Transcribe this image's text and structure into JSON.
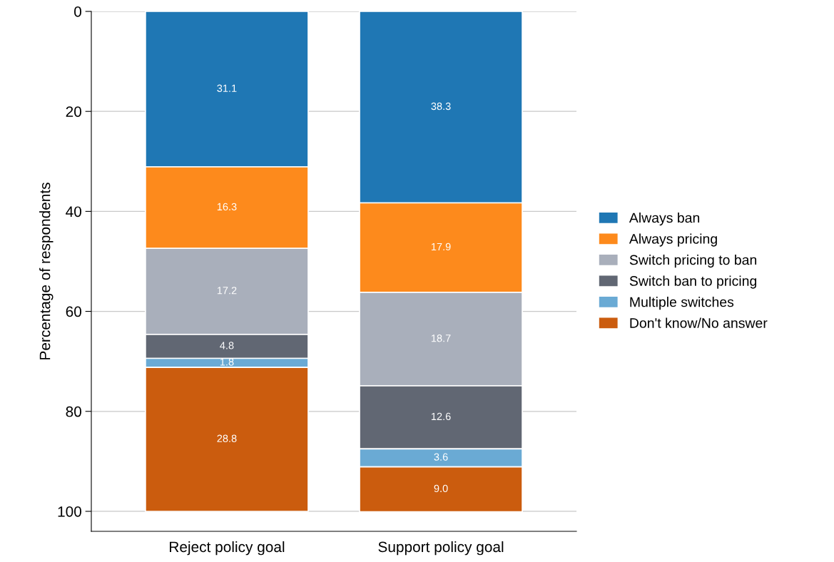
{
  "chart_data": {
    "type": "bar",
    "stacked": true,
    "ylabel": "Percentage of respondents",
    "categories": [
      "Reject policy goal",
      "Support policy goal"
    ],
    "series": [
      {
        "name": "Always ban",
        "color": "#1f77b4",
        "values": [
          31.1,
          38.3
        ],
        "value_labels": [
          "31.1",
          "38.3"
        ]
      },
      {
        "name": "Always pricing",
        "color": "#fd8a1c",
        "values": [
          16.3,
          17.9
        ],
        "value_labels": [
          "16.3",
          "17.9"
        ]
      },
      {
        "name": "Switch pricing to ban",
        "color": "#a9afbb",
        "values": [
          17.2,
          18.7
        ],
        "value_labels": [
          "17.2",
          "18.7"
        ]
      },
      {
        "name": "Switch ban to pricing",
        "color": "#616773",
        "values": [
          4.8,
          12.6
        ],
        "value_labels": [
          "4.8",
          "12.6"
        ]
      },
      {
        "name": "Multiple switches",
        "color": "#6aaad4",
        "values": [
          1.8,
          3.6
        ],
        "value_labels": [
          "1.8",
          "3.6"
        ]
      },
      {
        "name": "Don't know/No answer",
        "color": "#cb5c0e",
        "values": [
          28.8,
          9.0
        ],
        "value_labels": [
          "28.8",
          "9.0"
        ]
      }
    ],
    "ylim": [
      104,
      0
    ],
    "yticks": [
      0,
      20,
      40,
      60,
      80,
      100
    ],
    "grid": "y",
    "legend": "right"
  }
}
